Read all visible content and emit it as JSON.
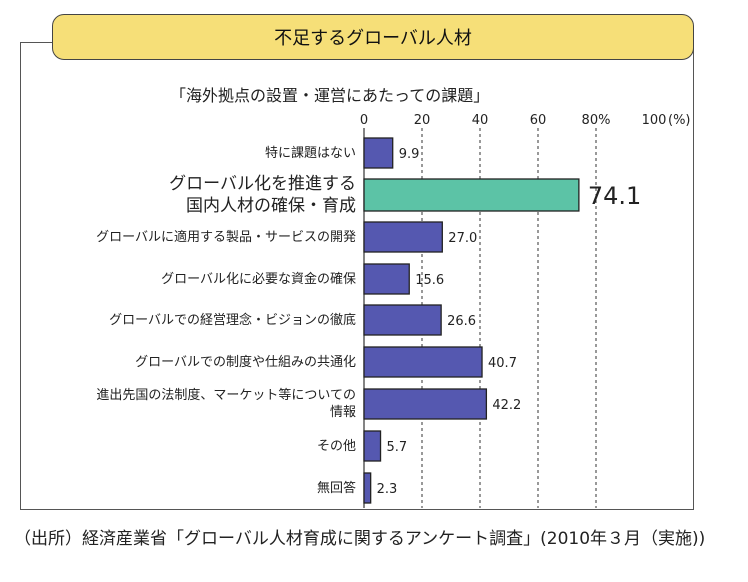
{
  "header": {
    "title": "不足するグローバル人材"
  },
  "chart_data": {
    "type": "bar",
    "orientation": "horizontal",
    "title": "「海外拠点の設置・運営にあたっての課題」",
    "unit_label": "(%)",
    "xlim": [
      0,
      100
    ],
    "ticks": [
      0,
      20,
      40,
      60,
      80,
      100
    ],
    "tick_labels": [
      "0",
      "20",
      "40",
      "60",
      "80%",
      "100"
    ],
    "categories": [
      "特に課題はない",
      "グローバル化を推進する\n国内人材の確保・育成",
      "グローバルに適用する製品・サービスの開発",
      "グローバル化に必要な資金の確保",
      "グローバルでの経営理念・ビジョンの徹底",
      "グローバルでの制度や仕組みの共通化",
      "進出先国の法制度、マーケット等についての\n情報",
      "その他",
      "無回答"
    ],
    "values": [
      9.9,
      74.1,
      27.0,
      15.6,
      26.6,
      40.7,
      42.2,
      5.7,
      2.3
    ],
    "value_labels": [
      "9.9",
      "74.1",
      "27.0",
      "15.6",
      "26.6",
      "40.7",
      "42.2",
      "5.7",
      "2.3"
    ],
    "highlight_index": 1,
    "colors": {
      "bar": "#5558b0",
      "highlight": "#5cc3a6",
      "bar_border": "#222222",
      "grid": "#333333"
    },
    "source_note": "（出所）経済産業省「グローバル人材育成に関するアンケート調査」(2010年３月（実施))"
  }
}
